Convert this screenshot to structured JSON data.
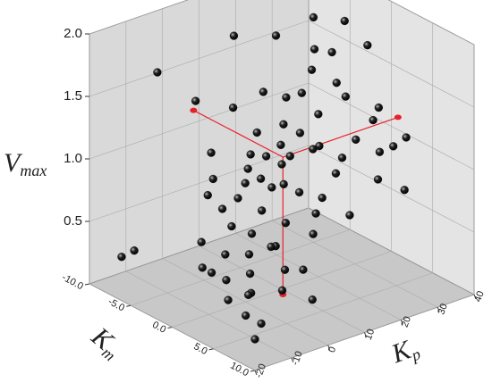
{
  "chart_data": {
    "type": "scatter3d",
    "xlabel": "K",
    "xlabel_sub": "m",
    "ylabel": "K",
    "ylabel_sub": "p",
    "zlabel": "V",
    "zlabel_sub": "max",
    "xlim": [
      -10,
      10
    ],
    "xticks": [
      {
        "value": -10,
        "label": "-10.0"
      },
      {
        "value": -5,
        "label": "-5.0"
      },
      {
        "value": 0,
        "label": "0.0"
      },
      {
        "value": 5,
        "label": "5.0"
      },
      {
        "value": 10,
        "label": "10.0"
      }
    ],
    "ylim": [
      -20,
      40
    ],
    "yticks": [
      -20,
      -10,
      0,
      10,
      20,
      30,
      40
    ],
    "zlim": [
      0,
      2
    ],
    "zticks": [
      0.5,
      {
        "value": 1,
        "label": "1.0"
      },
      1.5,
      {
        "value": 2,
        "label": "2.0"
      }
    ],
    "grid": true,
    "series": [
      {
        "color": "#111111",
        "x": [
          0,
          1,
          -1,
          2,
          -2,
          3,
          4,
          5,
          0,
          -3,
          -5,
          -6,
          -4,
          1,
          2,
          6,
          7,
          3,
          -1,
          0,
          1,
          -2,
          4,
          5,
          2,
          -3,
          -7,
          -8,
          -2,
          0,
          3,
          5,
          8,
          9,
          7,
          6,
          4,
          -1,
          -4,
          -9,
          -6,
          -5,
          1,
          -2,
          2,
          0,
          3,
          8,
          6,
          -3,
          0,
          1,
          2,
          -1,
          0,
          1,
          -2,
          3,
          4,
          2,
          5,
          7,
          9,
          -1,
          -3,
          -5,
          -4,
          -6,
          0,
          2,
          4,
          6,
          -8,
          10,
          -7,
          3,
          5,
          1,
          -1,
          -3
        ],
        "y": [
          10,
          5,
          12,
          0,
          15,
          -5,
          -8,
          -10,
          20,
          25,
          30,
          35,
          28,
          18,
          22,
          -12,
          -15,
          8,
          3,
          -2,
          -6,
          6,
          2,
          -3,
          14,
          18,
          38,
          39,
          32,
          35,
          30,
          25,
          -18,
          -16,
          -5,
          5,
          12,
          -8,
          -15,
          -10,
          0,
          8,
          28,
          38,
          36,
          -12,
          -16,
          -8,
          15,
          10,
          0,
          2,
          6,
          8,
          15,
          10,
          20,
          18,
          -2,
          -10,
          8,
          0,
          -2,
          -4,
          -2,
          2,
          14,
          22,
          25,
          32,
          35,
          30,
          15,
          -20,
          -18,
          -12,
          -16,
          -14,
          26,
          34
        ],
        "z": [
          1.0,
          0.9,
          1.1,
          0.8,
          1.2,
          0.7,
          0.6,
          0.5,
          1.3,
          1.5,
          1.8,
          1.9,
          1.6,
          1.1,
          1.0,
          0.4,
          0.45,
          0.9,
          1.0,
          0.85,
          0.7,
          1.05,
          0.75,
          0.65,
          1.15,
          1.35,
          2.0,
          1.95,
          1.25,
          1.1,
          1.0,
          0.9,
          0.35,
          0.3,
          0.55,
          0.7,
          0.85,
          0.9,
          1.85,
          0.2,
          1.4,
          1.3,
          1.05,
          1.6,
          0.95,
          0.6,
          0.5,
          0.45,
          0.75,
          1.15,
          0.95,
          1.0,
          0.95,
          1.05,
          1.2,
          1.1,
          1.4,
          0.95,
          0.6,
          0.55,
          0.8,
          0.5,
          0.35,
          0.75,
          0.9,
          1.0,
          1.4,
          1.7,
          1.5,
          1.3,
          1.1,
          0.8,
          1.7,
          0.25,
          0.3,
          0.4,
          0.35,
          0.45,
          1.7,
          1.8
        ]
      }
    ],
    "highlight": {
      "color": "#e8202a",
      "x": 0.8,
      "y": 8.5,
      "z": 1.1
    }
  }
}
